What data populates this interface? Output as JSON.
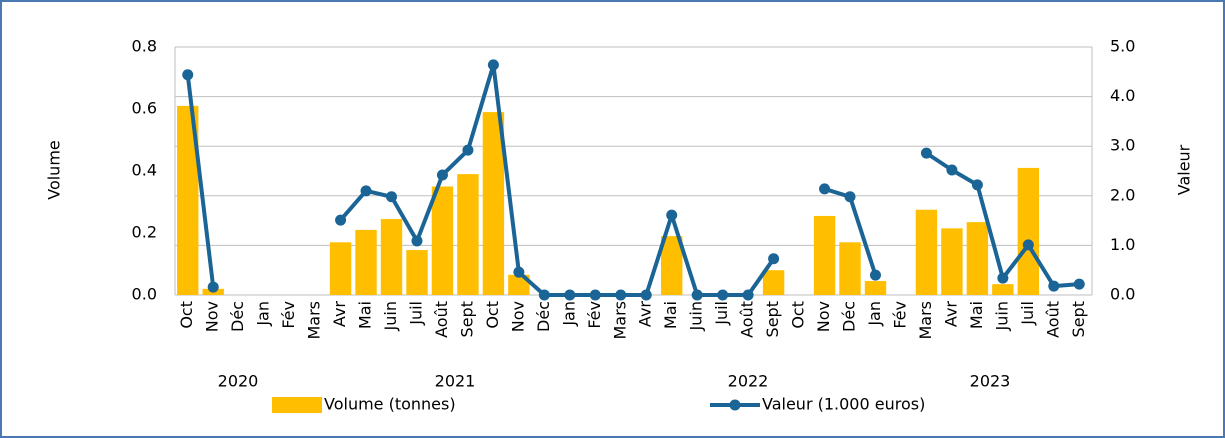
{
  "chart_data": {
    "type": "bar-line",
    "categories": [
      "Oct",
      "Nov",
      "Déc",
      "Jan",
      "Fév",
      "Mars",
      "Avr",
      "Mai",
      "Juin",
      "Juil",
      "Août",
      "Sept",
      "Oct",
      "Nov",
      "Déc",
      "Jan",
      "Fév",
      "Mars",
      "Avr",
      "Mai",
      "Juin",
      "Juil",
      "Août",
      "Sept",
      "Oct",
      "Nov",
      "Déc",
      "Jan",
      "Fév",
      "Mars",
      "Avr",
      "Mai",
      "Juin",
      "Juil",
      "Août",
      "Sept"
    ],
    "years": [
      "2020",
      "2021",
      "2022",
      "2023"
    ],
    "ylabel": "Volume",
    "y2label": "Valeur",
    "series": [
      {
        "name": "Volume (tonnes)",
        "type": "bar",
        "color": "#ffbf00",
        "values": [
          0.61,
          0.02,
          null,
          null,
          null,
          null,
          0.17,
          0.21,
          0.245,
          0.145,
          0.35,
          0.39,
          0.59,
          0.065,
          null,
          null,
          null,
          null,
          null,
          0.19,
          null,
          null,
          null,
          0.08,
          null,
          0.255,
          0.17,
          0.045,
          null,
          0.275,
          0.215,
          0.235,
          0.035,
          0.41,
          null,
          null
        ]
      },
      {
        "name": "Valeur (1.000 euros)",
        "type": "line",
        "axis": "y2",
        "color": "#1a6496",
        "values": [
          4.44,
          0.16,
          null,
          null,
          null,
          null,
          1.51,
          2.1,
          1.98,
          1.09,
          2.42,
          2.92,
          4.64,
          0.46,
          0,
          0,
          0,
          0,
          0,
          1.61,
          0,
          0,
          0,
          0.73,
          null,
          2.14,
          1.98,
          0.4,
          null,
          2.86,
          2.52,
          2.22,
          0.34,
          1.01,
          0.18,
          0.22
        ]
      }
    ],
    "ylim": [
      0,
      0.8
    ],
    "yticks": [
      {
        "value": 0,
        "label": "0.0"
      },
      {
        "value": 0.2,
        "label": "0.2"
      },
      {
        "value": 0.4,
        "label": "0.4"
      },
      {
        "value": 0.6,
        "label": "0.6"
      },
      {
        "value": 0.8,
        "label": "0.8"
      }
    ],
    "y2lim": [
      0,
      5
    ],
    "y2ticks": [
      {
        "value": 0,
        "label": "0.0"
      },
      {
        "value": 1,
        "label": "1.0"
      },
      {
        "value": 2,
        "label": "2.0"
      },
      {
        "value": 3,
        "label": "3.0"
      },
      {
        "value": 4,
        "label": "4.0"
      },
      {
        "value": 5,
        "label": "5.0"
      }
    ],
    "grid": true
  }
}
